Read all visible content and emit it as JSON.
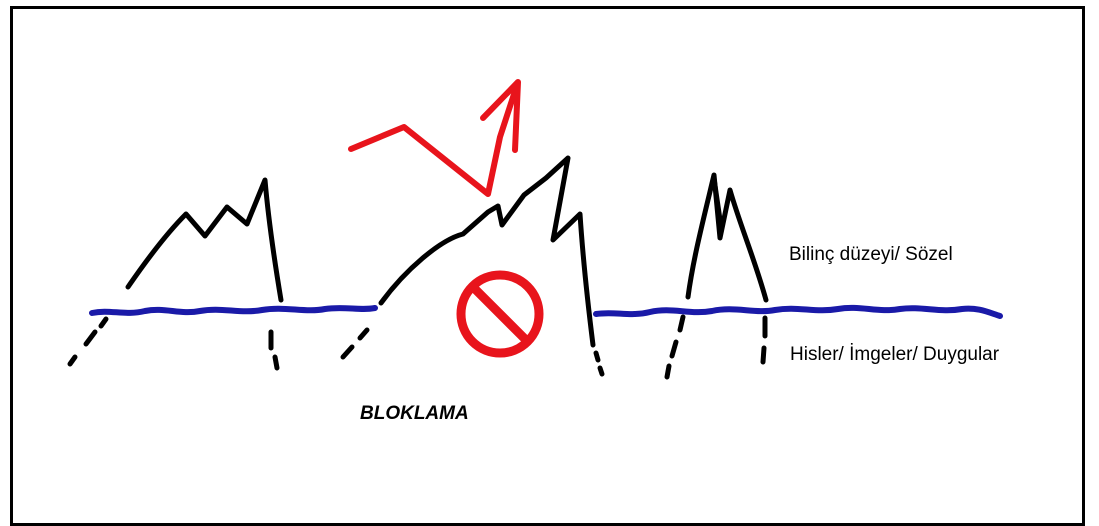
{
  "diagram": {
    "labels": {
      "conscious_level": "Bilinç düzeyi/ Sözel",
      "feelings": "Hisler/ İmgeler/ Duygular",
      "blocking": "BLOKLAMA"
    },
    "colors": {
      "waterline": "#1a1aa8",
      "arrow": "#e8141c",
      "stop_sign": "#e8141c",
      "peaks": "#000000",
      "border": "#000000"
    },
    "icons": {
      "stop": "prohibition-icon",
      "arrow": "deflected-arrow-icon"
    }
  }
}
